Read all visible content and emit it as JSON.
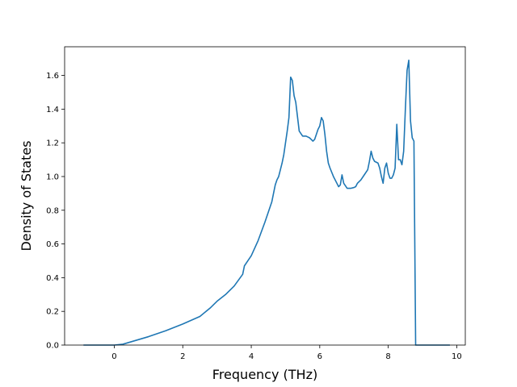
{
  "chart_data": {
    "type": "line",
    "title": "",
    "xlabel": "Frequency (THz)",
    "ylabel": "Density of States",
    "xlim": [
      -1.45,
      10.25
    ],
    "ylim": [
      0,
      1.77
    ],
    "xticks": [
      0,
      2,
      4,
      6,
      8,
      10
    ],
    "yticks": [
      0.0,
      0.2,
      0.4,
      0.6,
      0.8,
      1.0,
      1.2,
      1.4,
      1.6
    ],
    "xtick_labels": [
      "0",
      "2",
      "4",
      "6",
      "8",
      "10"
    ],
    "ytick_labels": [
      "0.0",
      "0.2",
      "0.4",
      "0.6",
      "0.8",
      "1.0",
      "1.2",
      "1.4",
      "1.6"
    ],
    "grid": false,
    "line_color": "#1f77b4",
    "series": [
      {
        "name": "",
        "x": [
          -0.9,
          -0.5,
          0.0,
          0.25,
          0.5,
          1.0,
          1.5,
          2.0,
          2.5,
          2.8,
          3.0,
          3.25,
          3.5,
          3.75,
          3.8,
          3.9,
          4.0,
          4.2,
          4.4,
          4.6,
          4.7,
          4.75,
          4.8,
          4.85,
          4.9,
          4.95,
          5.0,
          5.05,
          5.1,
          5.15,
          5.2,
          5.25,
          5.3,
          5.4,
          5.5,
          5.6,
          5.7,
          5.75,
          5.8,
          5.85,
          5.9,
          5.95,
          6.0,
          6.05,
          6.1,
          6.15,
          6.2,
          6.25,
          6.3,
          6.4,
          6.5,
          6.55,
          6.6,
          6.65,
          6.7,
          6.8,
          6.9,
          7.0,
          7.05,
          7.1,
          7.2,
          7.3,
          7.4,
          7.45,
          7.5,
          7.55,
          7.6,
          7.7,
          7.75,
          7.8,
          7.85,
          7.9,
          7.95,
          8.0,
          8.05,
          8.1,
          8.15,
          8.2,
          8.25,
          8.3,
          8.35,
          8.4,
          8.45,
          8.5,
          8.55,
          8.6,
          8.65,
          8.7,
          8.75,
          8.8,
          8.9,
          9.0,
          9.5,
          9.8
        ],
        "y": [
          0.0,
          0.0,
          0.0,
          0.005,
          0.02,
          0.05,
          0.085,
          0.125,
          0.17,
          0.22,
          0.26,
          0.3,
          0.35,
          0.42,
          0.47,
          0.5,
          0.53,
          0.62,
          0.73,
          0.85,
          0.95,
          0.98,
          1.0,
          1.04,
          1.08,
          1.13,
          1.2,
          1.27,
          1.35,
          1.59,
          1.57,
          1.48,
          1.44,
          1.27,
          1.24,
          1.24,
          1.23,
          1.22,
          1.21,
          1.22,
          1.25,
          1.28,
          1.3,
          1.35,
          1.33,
          1.25,
          1.15,
          1.08,
          1.05,
          1.0,
          0.96,
          0.94,
          0.95,
          1.01,
          0.96,
          0.93,
          0.93,
          0.935,
          0.94,
          0.96,
          0.98,
          1.01,
          1.04,
          1.09,
          1.15,
          1.11,
          1.09,
          1.08,
          1.05,
          1.0,
          0.96,
          1.05,
          1.08,
          1.02,
          0.99,
          0.99,
          1.01,
          1.05,
          1.31,
          1.1,
          1.1,
          1.07,
          1.15,
          1.4,
          1.63,
          1.69,
          1.33,
          1.23,
          1.21,
          0.0,
          0.0,
          0.0,
          0.0,
          0.0
        ]
      }
    ]
  }
}
